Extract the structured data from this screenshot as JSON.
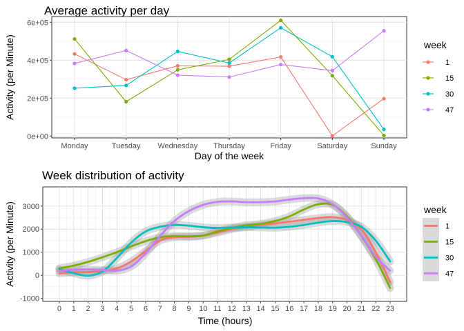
{
  "chart_data": [
    {
      "type": "line",
      "title": "Average activity per day",
      "xlabel": "Day of the week",
      "ylabel": "Activity (per Minute)",
      "categories": [
        "Monday",
        "Tuesday",
        "Wednesday",
        "Thursday",
        "Friday",
        "Saturday",
        "Sunday"
      ],
      "ylim": [
        -10000,
        630000
      ],
      "yticks": [
        0,
        200000,
        400000,
        600000
      ],
      "ytick_labels": [
        "0e+00",
        "2e+05",
        "4e+05",
        "6e+05"
      ],
      "grid": true,
      "legend_title": "week",
      "legend_position": "right",
      "series": [
        {
          "name": "1",
          "color": "#F8766D",
          "values": [
            433000,
            297000,
            370000,
            368000,
            417000,
            1000,
            197000
          ]
        },
        {
          "name": "15",
          "color": "#7CAE00",
          "values": [
            512000,
            181000,
            349000,
            404000,
            610000,
            318000,
            3000
          ]
        },
        {
          "name": "30",
          "color": "#00BFC4",
          "values": [
            252000,
            267000,
            446000,
            385000,
            571000,
            418000,
            35000
          ]
        },
        {
          "name": "47",
          "color": "#C77CFF",
          "values": [
            383000,
            451000,
            321000,
            311000,
            377000,
            345000,
            555000
          ]
        }
      ]
    },
    {
      "type": "line",
      "title": "Week distribution of activity",
      "xlabel": "Time (hours)",
      "ylabel": "Activity (per Minute)",
      "xticks": [
        0,
        1,
        2,
        3,
        4,
        5,
        6,
        7,
        8,
        9,
        10,
        11,
        12,
        13,
        14,
        15,
        16,
        17,
        18,
        19,
        20,
        21,
        22,
        23
      ],
      "xlim": [
        -1.15,
        24.15
      ],
      "ylim": [
        -1130,
        3830
      ],
      "yticks": [
        -1000,
        0,
        1000,
        2000,
        3000
      ],
      "grid": true,
      "legend_title": "week",
      "legend_position": "right",
      "series": [
        {
          "name": "1",
          "color": "#F8766D",
          "x": [
            0,
            1,
            2,
            3,
            4,
            5,
            6,
            7,
            8,
            9,
            10,
            11,
            12,
            13,
            14,
            15,
            16,
            17,
            18,
            19,
            20,
            21,
            22,
            23
          ],
          "values": [
            80,
            130,
            140,
            190,
            300,
            600,
            1050,
            1500,
            1650,
            1660,
            1720,
            1850,
            2000,
            2100,
            2180,
            2250,
            2320,
            2400,
            2480,
            2520,
            2400,
            2000,
            1000,
            -300
          ]
        },
        {
          "name": "15",
          "color": "#7CAE00",
          "x": [
            0,
            1,
            2,
            3,
            4,
            5,
            6,
            7,
            8,
            9,
            10,
            11,
            12,
            13,
            14,
            15,
            16,
            17,
            18,
            19,
            20,
            21,
            22,
            23
          ],
          "values": [
            300,
            420,
            580,
            780,
            1000,
            1250,
            1480,
            1640,
            1700,
            1690,
            1720,
            1900,
            2050,
            2170,
            2230,
            2350,
            2550,
            2850,
            3080,
            3050,
            2550,
            1700,
            700,
            -550
          ]
        },
        {
          "name": "30",
          "color": "#00BFC4",
          "x": [
            0,
            1,
            2,
            3,
            4,
            5,
            6,
            7,
            8,
            9,
            10,
            11,
            12,
            13,
            14,
            15,
            16,
            17,
            18,
            19,
            20,
            21,
            22,
            23
          ],
          "values": [
            260,
            90,
            -20,
            160,
            750,
            1420,
            1900,
            2100,
            2180,
            2150,
            2080,
            2050,
            2070,
            2080,
            2070,
            2060,
            2100,
            2180,
            2280,
            2350,
            2300,
            2100,
            1500,
            600
          ]
        },
        {
          "name": "47",
          "color": "#C77CFF",
          "x": [
            0,
            1,
            2,
            3,
            4,
            5,
            6,
            7,
            8,
            9,
            10,
            11,
            12,
            13,
            14,
            15,
            16,
            17,
            18,
            19,
            20,
            21,
            22,
            23
          ],
          "values": [
            180,
            240,
            250,
            230,
            200,
            380,
            950,
            1700,
            2350,
            2780,
            3050,
            3180,
            3200,
            3170,
            3170,
            3200,
            3280,
            3340,
            3330,
            3080,
            2500,
            1700,
            800,
            200
          ]
        }
      ]
    }
  ]
}
